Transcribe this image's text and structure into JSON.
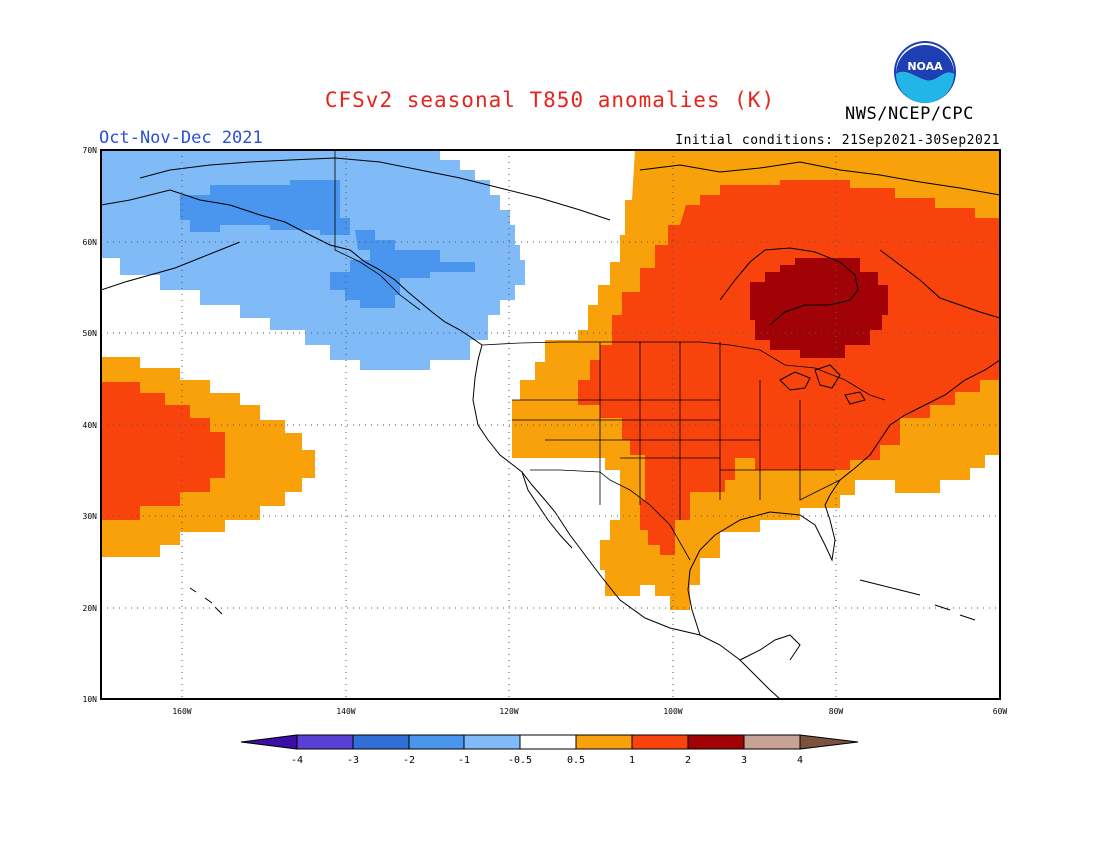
{
  "header": {
    "title": "CFSv2 seasonal T850 anomalies (K)",
    "agency": "NWS/NCEP/CPC",
    "logo_text": "NOAA",
    "period": "Oct-Nov-Dec 2021",
    "initial_conditions": "Initial conditions: 21Sep2021-30Sep2021"
  },
  "map": {
    "lon_range": [
      -170,
      -60
    ],
    "lat_range": [
      10,
      70
    ],
    "lat_labels": [
      "70N",
      "60N",
      "50N",
      "40N",
      "30N",
      "20N",
      "10N"
    ],
    "lon_labels": [
      "160W",
      "140W",
      "120W",
      "100W",
      "80W",
      "60W"
    ],
    "grid": "dotted"
  },
  "colorbar": {
    "labels": [
      "-4",
      "-3",
      "-2",
      "-1",
      "-0.5",
      "0.5",
      "1",
      "2",
      "3",
      "4"
    ],
    "colors": [
      "#3b0ea6",
      "#5a3fd6",
      "#2f6fd6",
      "#4a95ee",
      "#80baf7",
      "#ffffff",
      "#f8a10a",
      "#f9430c",
      "#a10205",
      "#c9a296",
      "#7d5140"
    ]
  },
  "anomaly_regions": [
    {
      "name": "gulf-of-alaska-cool",
      "level": "-1 to -0.5",
      "color": "#80baf7"
    },
    {
      "name": "alaska-cool-core",
      "level": "-2 to -1",
      "color": "#4a95ee"
    },
    {
      "name": "north-pacific-warm",
      "level": "0.5 to 1",
      "color": "#f8a10a"
    },
    {
      "name": "north-pacific-warm-core",
      "level": "1 to 2",
      "color": "#f9430c"
    },
    {
      "name": "eastern-north-america-warm",
      "level": "0.5 to 1",
      "color": "#f8a10a"
    },
    {
      "name": "eastern-north-america-warm-core",
      "level": "1 to 2",
      "color": "#f9430c"
    },
    {
      "name": "hudson-bay-warm-max",
      "level": "2 to 3",
      "color": "#a10205"
    }
  ]
}
